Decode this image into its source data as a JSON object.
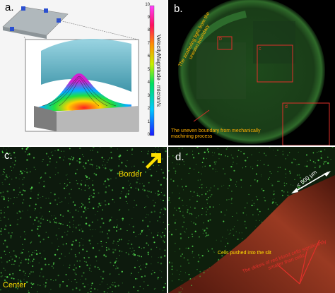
{
  "panels": {
    "a": {
      "tag": "a.",
      "colorbar_title": "VelocityMagnitude - micron/s",
      "colorbar_ticks": [
        "10",
        "9",
        "8",
        "7",
        "6",
        "5",
        "4",
        "3",
        "2",
        "1",
        "0"
      ]
    },
    "b": {
      "tag": "b.",
      "annotation_slit": "The scattering light from the uneven boundary",
      "annotation_boundary": "The uneven boundary from mechanically machining process",
      "roi_labels": [
        "b",
        "c",
        "d"
      ]
    },
    "c": {
      "tag": "c.",
      "label_border": "Border",
      "label_center": "Center"
    },
    "d": {
      "tag": "d.",
      "scale_label": "< 500 µm",
      "label_pushed": "Cells pushed into the slit",
      "label_debris": "The debris of red blood cells significantly smaller than cells"
    }
  },
  "colors": {
    "cell_green": "#4fd14a",
    "annotation_orange": "#ffb000",
    "roi_red": "#e0302a",
    "border_yellow": "#ffe000"
  }
}
